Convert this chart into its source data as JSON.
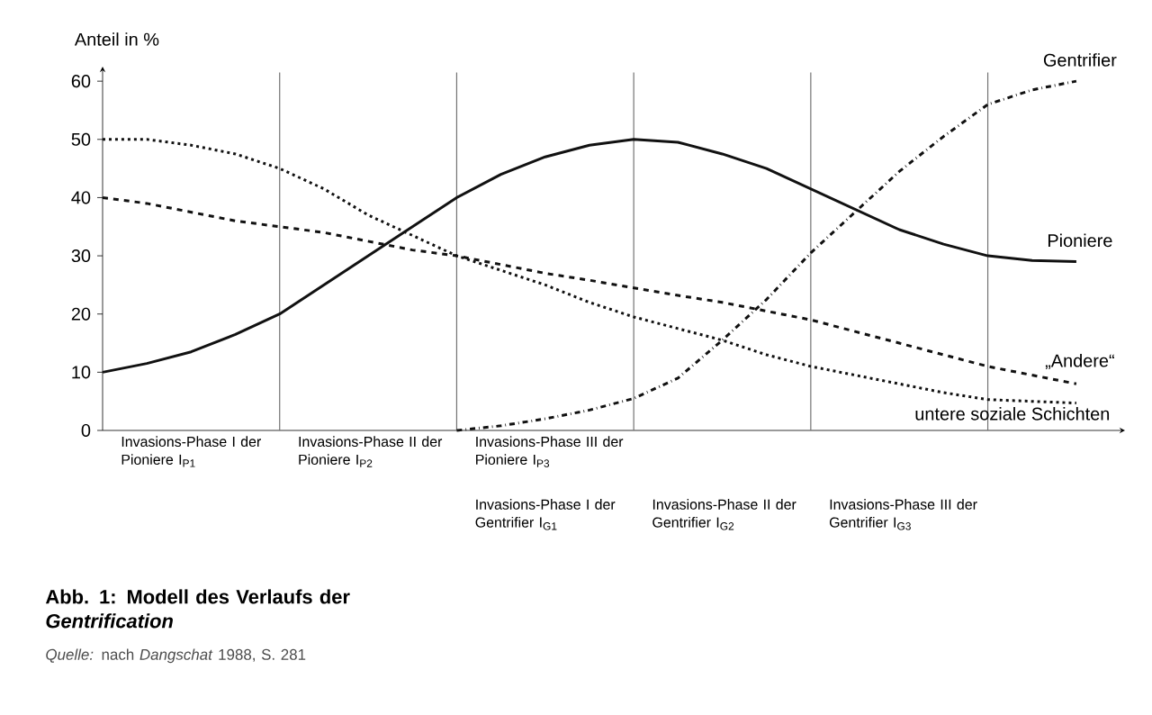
{
  "chart_data": {
    "type": "line",
    "title": "Abb. 1: Modell des Verlaufs der *Gentrification*",
    "ylabel": "Anteil in %",
    "ylim": [
      0,
      62.5
    ],
    "yticks": [
      0,
      10,
      20,
      30,
      40,
      50,
      60
    ],
    "tick_labels": "y",
    "marker": "none",
    "grid": "x",
    "categories": [
      null,
      null,
      null,
      null,
      null,
      null,
      null,
      null,
      null,
      null,
      null,
      null,
      null,
      null,
      null,
      null,
      null,
      null,
      null,
      null,
      null,
      null,
      null
    ],
    "series": [
      {
        "name": "Gentrifier",
        "color": "#111111",
        "line_style": "dashdot",
        "values": [
          null,
          null,
          null,
          null,
          null,
          null,
          null,
          null,
          0,
          0.8,
          2,
          3.5,
          5.5,
          9,
          15.5,
          22.5,
          30.5,
          37.5,
          44.5,
          50.5,
          56,
          58.5,
          60
        ]
      },
      {
        "name": "Pioniere",
        "color": "#111111",
        "line_style": "solid",
        "values": [
          10,
          11.5,
          13.5,
          16.5,
          20,
          25,
          30,
          35,
          40,
          44,
          47,
          49,
          50,
          49.5,
          47.5,
          45,
          41.5,
          38,
          34.5,
          32,
          30,
          29.2,
          29
        ]
      },
      {
        "name": "„Andere“",
        "color": "#111111",
        "line_style": "dashed",
        "values": [
          40,
          39,
          37.5,
          36,
          35,
          34,
          32.5,
          31,
          30,
          28.5,
          27,
          25.8,
          24.5,
          23.2,
          22,
          20.5,
          19,
          17,
          15,
          13,
          11,
          9.5,
          8
        ]
      },
      {
        "name": "untere soziale Schichten",
        "color": "#111111",
        "line_style": "dotted",
        "values": [
          50,
          50,
          49,
          47.5,
          45,
          41.5,
          37,
          33.5,
          30,
          27.5,
          25,
          22,
          19.5,
          17.5,
          15.5,
          13,
          11,
          9.5,
          8,
          6.5,
          5.3,
          5,
          4.7
        ]
      }
    ],
    "annotations": [
      "Invasions-Phase I der Pioniere I$_{P1}$",
      "Invasions-Phase II der Pioniere I$_{P2}$",
      "Invasions-Phase III der Pioniere I$_{P3}$",
      "Invasions-Phase I der Gentrifier I$_{G1}$",
      "Invasions-Phase II der Gentrifier I$_{G2}$",
      "Invasions-Phase III der Gentrifier I$_{G3}$",
      "*Quelle:* nach *Dangschat* 1988, S. 281"
    ]
  }
}
